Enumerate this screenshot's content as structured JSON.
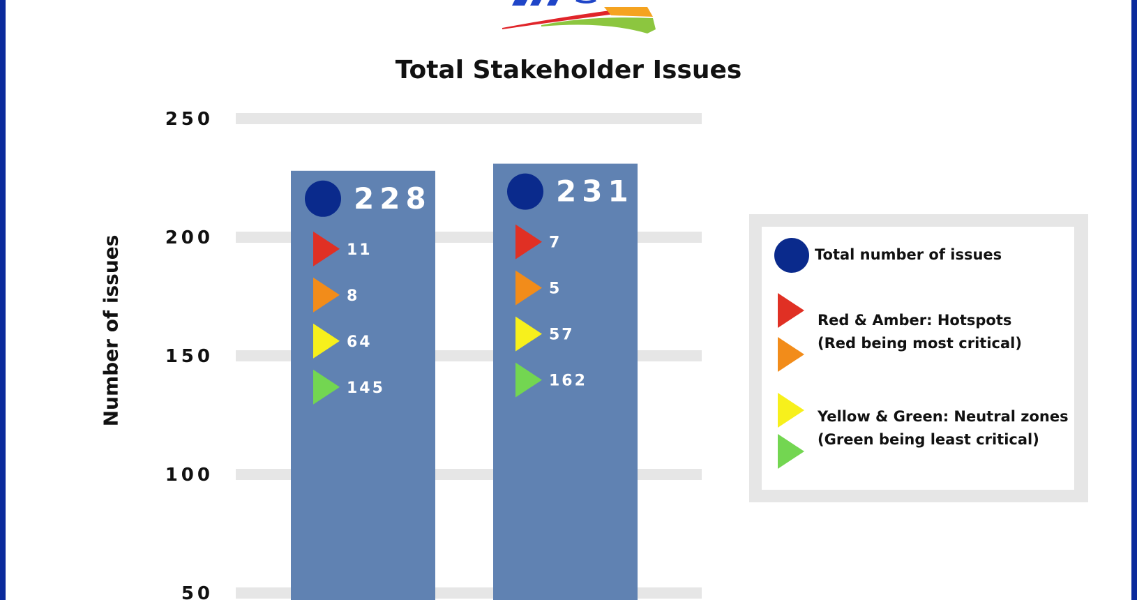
{
  "colors": {
    "frame": "#0a2a9c",
    "bar": "#5b7eb0",
    "grid": "#e6e6e6",
    "total_dot": "#0a2a8c",
    "red": "#e03024",
    "orange": "#f28c1a",
    "yellow": "#f7f01c",
    "green": "#73d651"
  },
  "chart_data": {
    "type": "bar",
    "title": "Total Stakeholder Issues",
    "ylabel": "Number of issues",
    "xlabel": "",
    "ylim": [
      50,
      250
    ],
    "yticks": [
      50,
      100,
      150,
      200,
      250
    ],
    "grid": true,
    "legend_position": "right",
    "bars": [
      {
        "total": 228,
        "red": 11,
        "orange": 8,
        "yellow": 64,
        "green": 145
      },
      {
        "total": 231,
        "red": 7,
        "orange": 5,
        "yellow": 57,
        "green": 162
      }
    ],
    "legend": {
      "total": "Total number of issues",
      "hot_line1": "Red & Amber: Hotspots",
      "hot_line2": "(Red being most critical)",
      "neutral_line1": "Yellow & Green: Neutral zones",
      "neutral_line2": "(Green being least critical)"
    }
  }
}
